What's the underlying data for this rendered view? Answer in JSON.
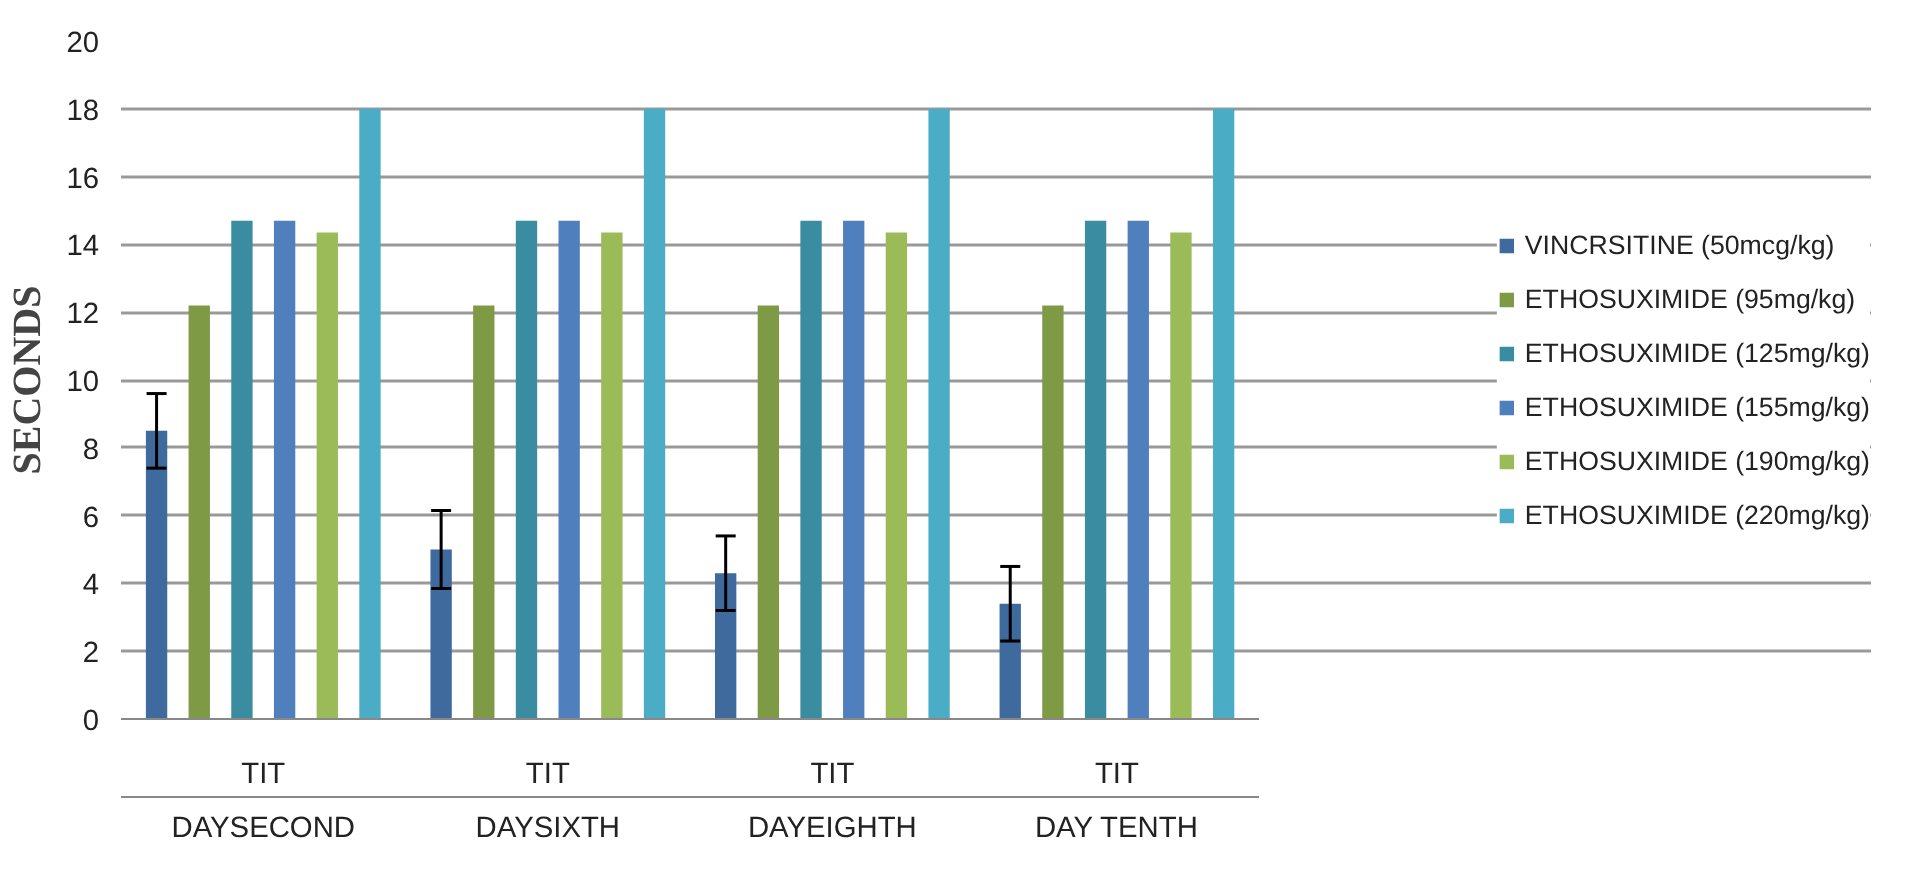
{
  "chart_data": {
    "type": "bar",
    "ylabel": "SECONDS",
    "categories": [
      "TIT\nDAYSECOND",
      "TIT\nDAYSIXTH",
      "TIT\nDAYEIGHTH",
      "TIT\nDAY TENTH"
    ],
    "series": [
      {
        "name": "VINCRSITINE (50mcg/kg)",
        "color": "#3e6a9e",
        "values": [
          8.5,
          5.0,
          4.3,
          3.4
        ],
        "errors": [
          1.1,
          1.15,
          1.1,
          1.1
        ]
      },
      {
        "name": "ETHOSUXIMIDE (95mg/kg)",
        "color": "#7e9a45",
        "values": [
          12.2,
          12.2,
          12.2,
          12.2
        ]
      },
      {
        "name": "ETHOSUXIMIDE (125mg/kg)",
        "color": "#3a8ca0",
        "values": [
          14.7,
          14.7,
          14.7,
          14.7
        ]
      },
      {
        "name": "ETHOSUXIMIDE (155mg/kg)",
        "color": "#4f80bd",
        "values": [
          14.7,
          14.7,
          14.7,
          14.7
        ]
      },
      {
        "name": "ETHOSUXIMIDE (190mg/kg)",
        "color": "#9bbb59",
        "values": [
          14.35,
          14.35,
          14.35,
          14.35
        ]
      },
      {
        "name": "ETHOSUXIMIDE (220mg/kg)",
        "color": "#4bacc6",
        "values": [
          18,
          18,
          18,
          18
        ]
      }
    ],
    "ylim": [
      0,
      20
    ],
    "yticks": [
      0,
      2,
      4,
      6,
      8,
      10,
      12,
      14,
      16,
      18,
      20
    ],
    "grid": "y",
    "legend": "right"
  }
}
